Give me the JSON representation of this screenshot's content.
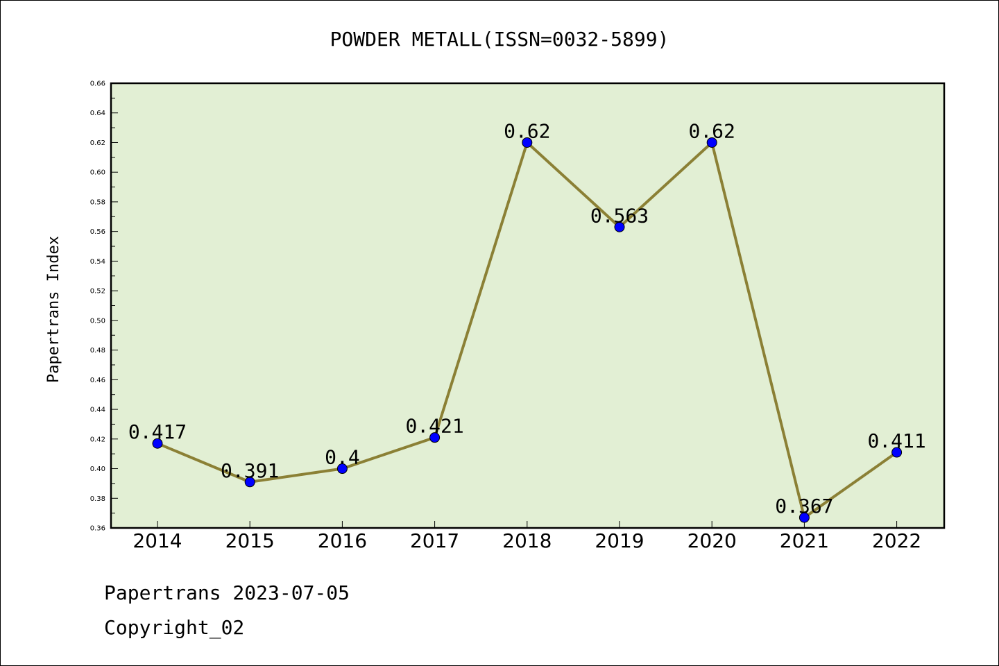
{
  "chart_data": {
    "type": "line",
    "title": "POWDER METALL(ISSN=0032-5899)",
    "ylabel": "Papertrans Index",
    "xlabel": "",
    "categories": [
      "2014",
      "2015",
      "2016",
      "2017",
      "2018",
      "2019",
      "2020",
      "2021",
      "2022"
    ],
    "values": [
      0.417,
      0.391,
      0.4,
      0.421,
      0.62,
      0.563,
      0.62,
      0.367,
      0.411
    ],
    "data_labels": [
      "0.417",
      "0.391",
      "0.4",
      "0.421",
      "0.62",
      "0.563",
      "0.62",
      "0.367",
      "0.411"
    ],
    "ylim": [
      0.36,
      0.66
    ],
    "yticks": [
      "0.36",
      "0.38",
      "0.40",
      "0.42",
      "0.44",
      "0.46",
      "0.48",
      "0.50",
      "0.52",
      "0.54",
      "0.56",
      "0.58",
      "0.60",
      "0.62",
      "0.64",
      "0.66"
    ],
    "grid": false,
    "legend": "none",
    "colors": {
      "line": "#8b8035",
      "marker": "#0000ff",
      "plot_background": "#e2efd4",
      "axes": "#000000"
    }
  },
  "footer": {
    "line1": "Papertrans 2023-07-05",
    "line2": "Copyright_02"
  }
}
